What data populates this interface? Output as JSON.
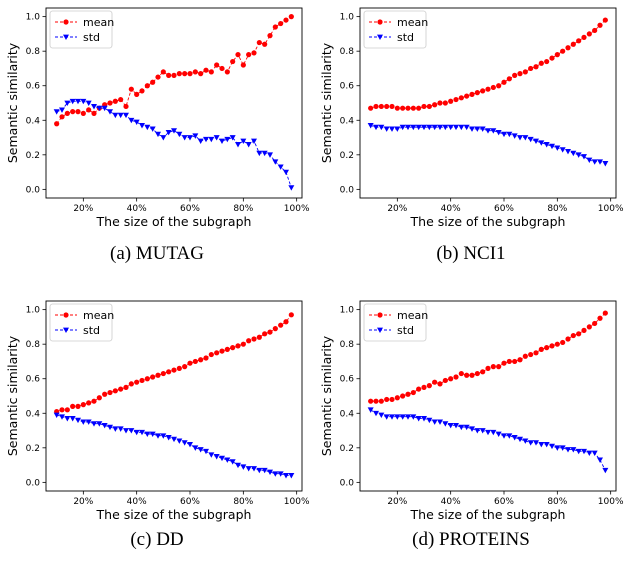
{
  "chart_data": [
    {
      "type": "line",
      "caption": "(a) MUTAG",
      "xlabel": "The size of the subgraph",
      "ylabel": "Semantic similarity",
      "xticks": [
        "20%",
        "40%",
        "60%",
        "80%",
        "100%"
      ],
      "yticks": [
        "0.0",
        "0.2",
        "0.4",
        "0.6",
        "0.8",
        "1.0"
      ],
      "xlim": [
        0.06,
        1.02
      ],
      "ylim": [
        -0.05,
        1.05
      ],
      "legend": "top-left",
      "x": [
        0.1,
        0.12,
        0.14,
        0.16,
        0.18,
        0.2,
        0.22,
        0.24,
        0.26,
        0.28,
        0.3,
        0.32,
        0.34,
        0.36,
        0.38,
        0.4,
        0.42,
        0.44,
        0.46,
        0.48,
        0.5,
        0.52,
        0.54,
        0.56,
        0.58,
        0.6,
        0.62,
        0.64,
        0.66,
        0.68,
        0.7,
        0.72,
        0.74,
        0.76,
        0.78,
        0.8,
        0.82,
        0.84,
        0.86,
        0.88,
        0.9,
        0.92,
        0.94,
        0.96,
        0.98
      ],
      "series": [
        {
          "name": "mean",
          "color": "#ff0000",
          "marker": "circle",
          "values": [
            0.38,
            0.42,
            0.44,
            0.45,
            0.45,
            0.44,
            0.46,
            0.44,
            0.47,
            0.49,
            0.5,
            0.51,
            0.52,
            0.48,
            0.58,
            0.55,
            0.57,
            0.6,
            0.62,
            0.65,
            0.68,
            0.66,
            0.66,
            0.67,
            0.67,
            0.67,
            0.68,
            0.67,
            0.69,
            0.68,
            0.72,
            0.7,
            0.68,
            0.74,
            0.78,
            0.72,
            0.78,
            0.79,
            0.85,
            0.84,
            0.89,
            0.94,
            0.96,
            0.98,
            1.0
          ]
        },
        {
          "name": "std",
          "color": "#0000ff",
          "marker": "triangle-down",
          "values": [
            0.45,
            0.46,
            0.5,
            0.51,
            0.51,
            0.51,
            0.5,
            0.48,
            0.47,
            0.47,
            0.45,
            0.43,
            0.43,
            0.43,
            0.4,
            0.39,
            0.37,
            0.36,
            0.35,
            0.32,
            0.3,
            0.33,
            0.34,
            0.32,
            0.3,
            0.3,
            0.31,
            0.28,
            0.29,
            0.29,
            0.3,
            0.28,
            0.29,
            0.3,
            0.26,
            0.28,
            0.26,
            0.28,
            0.21,
            0.21,
            0.2,
            0.16,
            0.13,
            0.1,
            0.01
          ]
        }
      ]
    },
    {
      "type": "line",
      "caption": "(b) NCI1",
      "xlabel": "The size of the subgraph",
      "ylabel": "Semantic similarity",
      "xticks": [
        "20%",
        "40%",
        "60%",
        "80%",
        "100%"
      ],
      "yticks": [
        "0.0",
        "0.2",
        "0.4",
        "0.6",
        "0.8",
        "1.0"
      ],
      "xlim": [
        0.06,
        1.02
      ],
      "ylim": [
        -0.05,
        1.05
      ],
      "legend": "top-left",
      "x": [
        0.1,
        0.12,
        0.14,
        0.16,
        0.18,
        0.2,
        0.22,
        0.24,
        0.26,
        0.28,
        0.3,
        0.32,
        0.34,
        0.36,
        0.38,
        0.4,
        0.42,
        0.44,
        0.46,
        0.48,
        0.5,
        0.52,
        0.54,
        0.56,
        0.58,
        0.6,
        0.62,
        0.64,
        0.66,
        0.68,
        0.7,
        0.72,
        0.74,
        0.76,
        0.78,
        0.8,
        0.82,
        0.84,
        0.86,
        0.88,
        0.9,
        0.92,
        0.94,
        0.96,
        0.98
      ],
      "series": [
        {
          "name": "mean",
          "color": "#ff0000",
          "marker": "circle",
          "values": [
            0.47,
            0.48,
            0.48,
            0.48,
            0.48,
            0.47,
            0.47,
            0.47,
            0.47,
            0.47,
            0.48,
            0.48,
            0.49,
            0.5,
            0.5,
            0.51,
            0.52,
            0.53,
            0.54,
            0.55,
            0.56,
            0.57,
            0.58,
            0.59,
            0.6,
            0.62,
            0.64,
            0.66,
            0.67,
            0.68,
            0.7,
            0.71,
            0.73,
            0.74,
            0.76,
            0.78,
            0.8,
            0.82,
            0.84,
            0.86,
            0.88,
            0.9,
            0.92,
            0.95,
            0.98
          ]
        },
        {
          "name": "std",
          "color": "#0000ff",
          "marker": "triangle-down",
          "values": [
            0.37,
            0.36,
            0.36,
            0.35,
            0.35,
            0.35,
            0.36,
            0.36,
            0.36,
            0.36,
            0.36,
            0.36,
            0.36,
            0.36,
            0.36,
            0.36,
            0.36,
            0.36,
            0.36,
            0.35,
            0.35,
            0.35,
            0.34,
            0.34,
            0.33,
            0.32,
            0.32,
            0.31,
            0.3,
            0.3,
            0.29,
            0.28,
            0.27,
            0.26,
            0.25,
            0.24,
            0.23,
            0.22,
            0.21,
            0.2,
            0.19,
            0.17,
            0.16,
            0.16,
            0.15
          ]
        }
      ]
    },
    {
      "type": "line",
      "caption": "(c) DD",
      "xlabel": "The size of the subgraph",
      "ylabel": "Semantic similarity",
      "xticks": [
        "20%",
        "40%",
        "60%",
        "80%",
        "100%"
      ],
      "yticks": [
        "0.0",
        "0.2",
        "0.4",
        "0.6",
        "0.8",
        "1.0"
      ],
      "xlim": [
        0.06,
        1.02
      ],
      "ylim": [
        -0.05,
        1.05
      ],
      "legend": "top-left",
      "x": [
        0.1,
        0.12,
        0.14,
        0.16,
        0.18,
        0.2,
        0.22,
        0.24,
        0.26,
        0.28,
        0.3,
        0.32,
        0.34,
        0.36,
        0.38,
        0.4,
        0.42,
        0.44,
        0.46,
        0.48,
        0.5,
        0.52,
        0.54,
        0.56,
        0.58,
        0.6,
        0.62,
        0.64,
        0.66,
        0.68,
        0.7,
        0.72,
        0.74,
        0.76,
        0.78,
        0.8,
        0.82,
        0.84,
        0.86,
        0.88,
        0.9,
        0.92,
        0.94,
        0.96,
        0.98
      ],
      "series": [
        {
          "name": "mean",
          "color": "#ff0000",
          "marker": "circle",
          "values": [
            0.41,
            0.42,
            0.42,
            0.44,
            0.44,
            0.45,
            0.46,
            0.47,
            0.49,
            0.51,
            0.52,
            0.53,
            0.54,
            0.55,
            0.57,
            0.58,
            0.59,
            0.6,
            0.61,
            0.62,
            0.63,
            0.64,
            0.65,
            0.66,
            0.67,
            0.69,
            0.7,
            0.71,
            0.72,
            0.74,
            0.75,
            0.76,
            0.77,
            0.78,
            0.79,
            0.8,
            0.82,
            0.83,
            0.84,
            0.86,
            0.87,
            0.89,
            0.91,
            0.93,
            0.97
          ]
        },
        {
          "name": "std",
          "color": "#0000ff",
          "marker": "triangle-down",
          "values": [
            0.39,
            0.38,
            0.37,
            0.37,
            0.36,
            0.35,
            0.35,
            0.34,
            0.34,
            0.33,
            0.32,
            0.31,
            0.31,
            0.3,
            0.3,
            0.29,
            0.29,
            0.28,
            0.28,
            0.27,
            0.27,
            0.26,
            0.25,
            0.24,
            0.23,
            0.22,
            0.2,
            0.19,
            0.18,
            0.16,
            0.15,
            0.14,
            0.13,
            0.12,
            0.1,
            0.09,
            0.08,
            0.08,
            0.07,
            0.07,
            0.06,
            0.05,
            0.05,
            0.04,
            0.04
          ]
        }
      ]
    },
    {
      "type": "line",
      "caption": "(d) PROTEINS",
      "xlabel": "The size of the subgraph",
      "ylabel": "Semantic similarity",
      "xticks": [
        "20%",
        "40%",
        "60%",
        "80%",
        "100%"
      ],
      "yticks": [
        "0.0",
        "0.2",
        "0.4",
        "0.6",
        "0.8",
        "1.0"
      ],
      "xlim": [
        0.06,
        1.02
      ],
      "ylim": [
        -0.05,
        1.05
      ],
      "legend": "top-left",
      "x": [
        0.1,
        0.12,
        0.14,
        0.16,
        0.18,
        0.2,
        0.22,
        0.24,
        0.26,
        0.28,
        0.3,
        0.32,
        0.34,
        0.36,
        0.38,
        0.4,
        0.42,
        0.44,
        0.46,
        0.48,
        0.5,
        0.52,
        0.54,
        0.56,
        0.58,
        0.6,
        0.62,
        0.64,
        0.66,
        0.68,
        0.7,
        0.72,
        0.74,
        0.76,
        0.78,
        0.8,
        0.82,
        0.84,
        0.86,
        0.88,
        0.9,
        0.92,
        0.94,
        0.96,
        0.98
      ],
      "series": [
        {
          "name": "mean",
          "color": "#ff0000",
          "marker": "circle",
          "values": [
            0.47,
            0.47,
            0.47,
            0.48,
            0.48,
            0.49,
            0.5,
            0.51,
            0.52,
            0.54,
            0.55,
            0.56,
            0.58,
            0.57,
            0.59,
            0.6,
            0.61,
            0.63,
            0.62,
            0.62,
            0.63,
            0.64,
            0.66,
            0.67,
            0.67,
            0.69,
            0.7,
            0.7,
            0.71,
            0.73,
            0.74,
            0.75,
            0.77,
            0.78,
            0.79,
            0.8,
            0.81,
            0.83,
            0.85,
            0.86,
            0.88,
            0.9,
            0.92,
            0.95,
            0.98
          ]
        },
        {
          "name": "std",
          "color": "#0000ff",
          "marker": "triangle-down",
          "values": [
            0.42,
            0.4,
            0.39,
            0.38,
            0.38,
            0.38,
            0.38,
            0.38,
            0.38,
            0.37,
            0.37,
            0.36,
            0.35,
            0.35,
            0.34,
            0.33,
            0.33,
            0.32,
            0.32,
            0.31,
            0.3,
            0.3,
            0.29,
            0.29,
            0.28,
            0.27,
            0.27,
            0.26,
            0.25,
            0.24,
            0.23,
            0.23,
            0.22,
            0.22,
            0.21,
            0.2,
            0.2,
            0.19,
            0.19,
            0.18,
            0.18,
            0.17,
            0.17,
            0.13,
            0.07
          ]
        }
      ]
    }
  ]
}
